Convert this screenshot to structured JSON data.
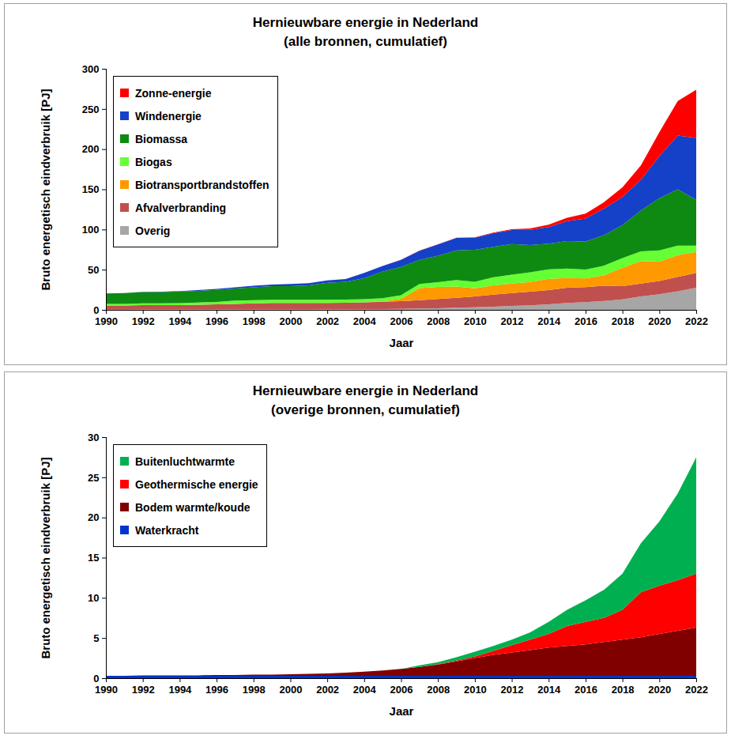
{
  "chart_data": [
    {
      "type": "area",
      "title": "Hernieuwbare energie in Nederland",
      "subtitle": "(alle bronnen, cumulatief)",
      "x_label": "Jaar",
      "y_label": "Bruto energetisch eindverbruik [PJ]",
      "x": [
        1990,
        1991,
        1992,
        1993,
        1994,
        1995,
        1996,
        1997,
        1998,
        1999,
        2000,
        2001,
        2002,
        2003,
        2004,
        2005,
        2006,
        2007,
        2008,
        2009,
        2010,
        2011,
        2012,
        2013,
        2014,
        2015,
        2016,
        2017,
        2018,
        2019,
        2020,
        2021,
        2022
      ],
      "xlim": [
        1990,
        2022
      ],
      "xticks": [
        1990,
        1992,
        1994,
        1996,
        1998,
        2000,
        2002,
        2004,
        2006,
        2008,
        2010,
        2012,
        2014,
        2016,
        2018,
        2020,
        2022
      ],
      "ylim": [
        0,
        300
      ],
      "yticks": [
        0,
        50,
        100,
        150,
        200,
        250,
        300
      ],
      "stacked": true,
      "grid": false,
      "legend": "top-left",
      "series": [
        {
          "name": "Zonne-energie",
          "color": "#ff0000",
          "values": [
            0,
            0,
            0,
            0,
            0,
            0,
            0,
            0,
            0,
            0,
            0.05,
            0.1,
            0.1,
            0.1,
            0.1,
            0.1,
            0.1,
            0.1,
            0.15,
            0.2,
            0.5,
            0.6,
            1,
            1.5,
            3,
            4,
            6,
            8,
            12,
            18,
            30,
            43,
            60
          ]
        },
        {
          "name": "Windenergie",
          "color": "#1540c8",
          "values": [
            0.2,
            0.2,
            0.3,
            0.4,
            0.5,
            1,
            1.2,
            1.5,
            2,
            2,
            2.5,
            2.6,
            2.9,
            3.5,
            6.5,
            7,
            9,
            11.5,
            14,
            15.5,
            15,
            17,
            17.5,
            19,
            20.5,
            25,
            28.5,
            33,
            35,
            38,
            52,
            67,
            77
          ]
        },
        {
          "name": "Biomassa",
          "color": "#0e8a12",
          "values": [
            13,
            13.5,
            14,
            14,
            14.5,
            14.5,
            15,
            15,
            16,
            17,
            17,
            18,
            21,
            22,
            26,
            33,
            35,
            30,
            33,
            37,
            40,
            38,
            38,
            34,
            32,
            34,
            35,
            38,
            41,
            51,
            65,
            70,
            57
          ]
        },
        {
          "name": "Biogas",
          "color": "#66ff33",
          "values": [
            2,
            2,
            2.2,
            2.3,
            2.5,
            2.8,
            3,
            4,
            4,
            4,
            4,
            4,
            4,
            4,
            4,
            4,
            4.5,
            5,
            6,
            8,
            8,
            10,
            11,
            12,
            12,
            12,
            11,
            12,
            12,
            12,
            14,
            12,
            8
          ]
        },
        {
          "name": "Biotransportbrandstoffen",
          "color": "#ff9900",
          "values": [
            0,
            0,
            0,
            0,
            0,
            0,
            0,
            0,
            0,
            0,
            0,
            0,
            0,
            0,
            0,
            0.5,
            3,
            15,
            15,
            14,
            10,
            11.5,
            12,
            12,
            14,
            12,
            11,
            13,
            23,
            28,
            24,
            27,
            26
          ]
        },
        {
          "name": "Afvalverbranding",
          "color": "#c0504d",
          "values": [
            5,
            5,
            5.5,
            5.5,
            5.5,
            6,
            6.5,
            7,
            7.5,
            8,
            8,
            8,
            8,
            8,
            8.5,
            9,
            9.5,
            10.5,
            11.5,
            12.5,
            13.5,
            15,
            16,
            17,
            17.5,
            19,
            18.5,
            19,
            16.5,
            16,
            16.5,
            18,
            18.5
          ]
        },
        {
          "name": "Overig",
          "color": "#a6a6a6",
          "values": [
            0.3,
            0.3,
            0.4,
            0.4,
            0.4,
            0.4,
            0.4,
            0.5,
            0.5,
            0.5,
            0.6,
            0.6,
            0.7,
            0.8,
            0.9,
            1.1,
            1.3,
            1.6,
            2.0,
            2.6,
            3.3,
            4.0,
            4.8,
            5.7,
            7.0,
            8.5,
            9.7,
            11.0,
            13.0,
            16.8,
            19.5,
            23.0,
            27.5
          ]
        }
      ]
    },
    {
      "type": "area",
      "title": "Hernieuwbare energie in Nederland",
      "subtitle": "(overige bronnen, cumulatief)",
      "x_label": "Jaar",
      "y_label": "Bruto energetisch eindverbruik [PJ]",
      "x": [
        1990,
        1991,
        1992,
        1993,
        1994,
        1995,
        1996,
        1997,
        1998,
        1999,
        2000,
        2001,
        2002,
        2003,
        2004,
        2005,
        2006,
        2007,
        2008,
        2009,
        2010,
        2011,
        2012,
        2013,
        2014,
        2015,
        2016,
        2017,
        2018,
        2019,
        2020,
        2021,
        2022
      ],
      "xlim": [
        1990,
        2022
      ],
      "xticks": [
        1990,
        1992,
        1994,
        1996,
        1998,
        2000,
        2002,
        2004,
        2006,
        2008,
        2010,
        2012,
        2014,
        2016,
        2018,
        2020,
        2022
      ],
      "ylim": [
        0,
        30
      ],
      "yticks": [
        0,
        5,
        10,
        15,
        20,
        25,
        30
      ],
      "stacked": true,
      "grid": false,
      "legend": "top-left",
      "series": [
        {
          "name": "Buitenluchtwarmte",
          "color": "#00b050",
          "values": [
            0,
            0,
            0,
            0,
            0,
            0,
            0,
            0,
            0,
            0,
            0,
            0,
            0,
            0,
            0,
            0,
            0,
            0.2,
            0.25,
            0.4,
            0.6,
            0.6,
            0.7,
            0.9,
            1.5,
            2.0,
            2.7,
            3.5,
            4.5,
            6.1,
            8.0,
            10.8,
            14.5
          ]
        },
        {
          "name": "Geothermische energie",
          "color": "#ff0000",
          "values": [
            0,
            0,
            0,
            0,
            0,
            0,
            0,
            0,
            0,
            0,
            0,
            0,
            0,
            0,
            0,
            0,
            0,
            0,
            0.05,
            0.1,
            0.2,
            0.5,
            0.9,
            1.3,
            1.7,
            2.5,
            2.8,
            3.0,
            3.7,
            5.6,
            6.0,
            6.3,
            6.7
          ]
        },
        {
          "name": "Bodem warmte/koude",
          "color": "#800000",
          "values": [
            0,
            0,
            0.05,
            0.05,
            0.05,
            0.05,
            0.1,
            0.1,
            0.15,
            0.15,
            0.2,
            0.25,
            0.3,
            0.4,
            0.5,
            0.65,
            0.85,
            1.1,
            1.4,
            1.8,
            2.2,
            2.6,
            2.9,
            3.2,
            3.5,
            3.7,
            3.9,
            4.2,
            4.5,
            4.8,
            5.2,
            5.6,
            6.0
          ]
        },
        {
          "name": "Waterkracht",
          "color": "#0033cc",
          "values": [
            0.3,
            0.3,
            0.3,
            0.3,
            0.3,
            0.3,
            0.3,
            0.3,
            0.3,
            0.3,
            0.3,
            0.3,
            0.3,
            0.3,
            0.3,
            0.3,
            0.3,
            0.3,
            0.3,
            0.3,
            0.3,
            0.3,
            0.3,
            0.3,
            0.3,
            0.3,
            0.3,
            0.3,
            0.3,
            0.3,
            0.3,
            0.3,
            0.3
          ]
        }
      ]
    }
  ]
}
